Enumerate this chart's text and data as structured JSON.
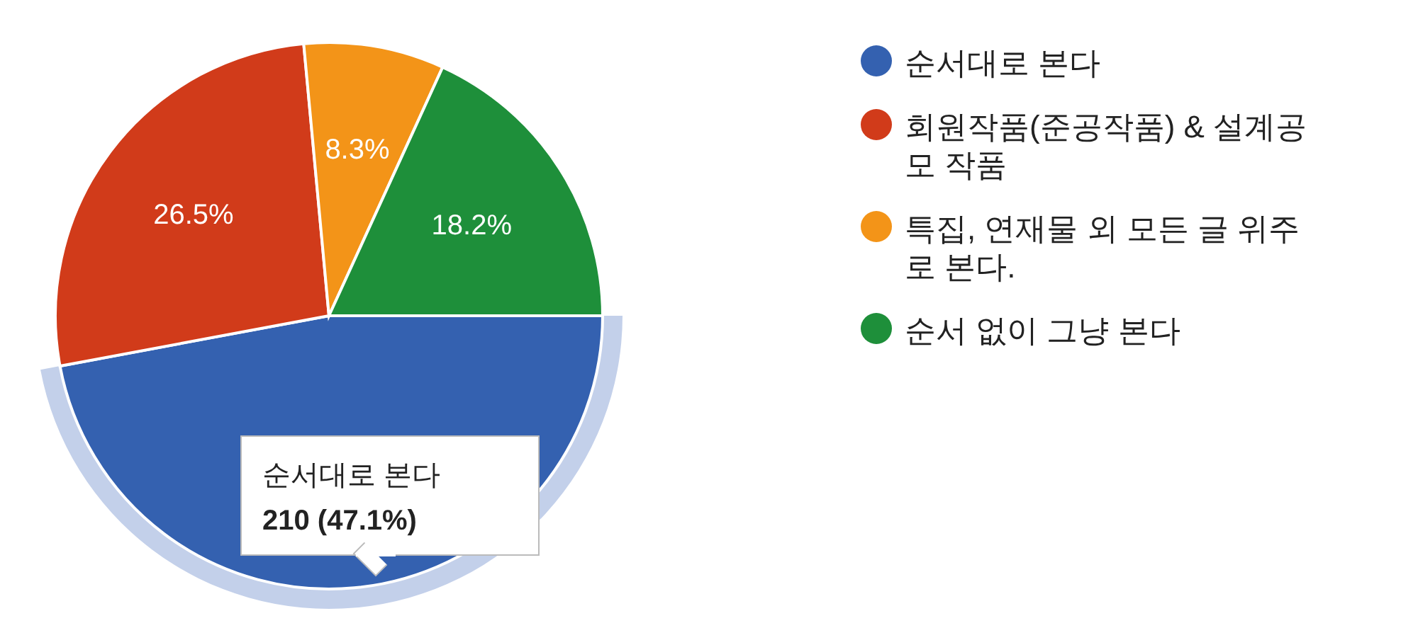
{
  "chart_data": {
    "type": "pie",
    "categories": [
      "순서대로 본다",
      "회원작품(준공작품) & 설계공모 작품",
      "특집, 연재물 외 모든 글 위주로 본다.",
      "순서 없이 그냥 본다"
    ],
    "values": [
      47.1,
      26.5,
      8.3,
      18.2
    ],
    "colors": [
      "#3461b0",
      "#d13b1a",
      "#f39418",
      "#1e8f3a"
    ],
    "value_labels": [
      null,
      "26.5%",
      "8.3%",
      "18.2%"
    ],
    "annotations": [
      "210 (47.1%)"
    ],
    "legend": "right"
  }
}
